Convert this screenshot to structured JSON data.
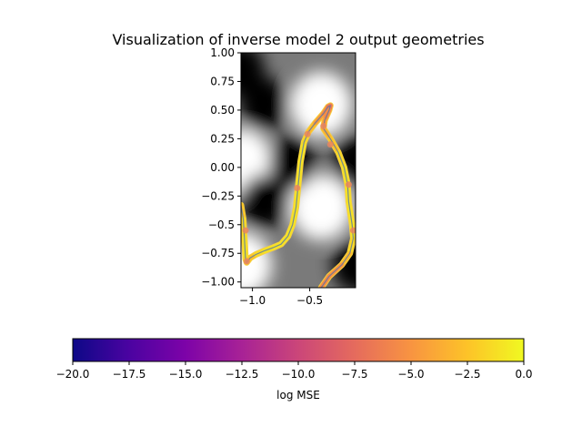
{
  "chart_data": {
    "type": "heatmap",
    "title": "Visualization of inverse model 2 output geometries",
    "xlabel": "",
    "ylabel": "",
    "xlim": [
      -1.1,
      -0.1
    ],
    "ylim": [
      -1.05,
      1.0
    ],
    "x_ticks": [
      {
        "value": -1.0,
        "label": "−1.0"
      },
      {
        "value": -0.5,
        "label": "−0.5"
      }
    ],
    "y_ticks": [
      {
        "value": 1.0,
        "label": "1.00"
      },
      {
        "value": 0.75,
        "label": "0.75"
      },
      {
        "value": 0.5,
        "label": "0.50"
      },
      {
        "value": 0.25,
        "label": "0.25"
      },
      {
        "value": 0.0,
        "label": "0.00"
      },
      {
        "value": -0.25,
        "label": "−0.25"
      },
      {
        "value": -0.5,
        "label": "−0.5"
      },
      {
        "value": -0.75,
        "label": "−0.75"
      },
      {
        "value": -1.0,
        "label": "−1.00"
      }
    ],
    "background": {
      "colormap": "gray",
      "bright_spots": [
        {
          "x": -0.4,
          "y": 0.55
        },
        {
          "x": -0.4,
          "y": -0.35
        },
        {
          "x": -1.1,
          "y": 0.05
        },
        {
          "x": -1.1,
          "y": -0.85
        }
      ],
      "dark_spots": [
        {
          "x": -0.9,
          "y": 0.55
        },
        {
          "x": -0.9,
          "y": -0.3
        },
        {
          "x": -0.1,
          "y": 0.05
        },
        {
          "x": -0.1,
          "y": -0.85
        },
        {
          "x": -1.1,
          "y": 0.85
        },
        {
          "x": -0.65,
          "y": 0.05
        }
      ]
    },
    "geometry_curve": {
      "color_metric": "log MSE",
      "points": [
        {
          "x": -1.1,
          "y": -0.33
        },
        {
          "x": -1.08,
          "y": -0.45
        },
        {
          "x": -1.07,
          "y": -0.62
        },
        {
          "x": -1.06,
          "y": -0.8
        },
        {
          "x": -1.05,
          "y": -0.83
        },
        {
          "x": -1.02,
          "y": -0.79
        },
        {
          "x": -0.97,
          "y": -0.76
        },
        {
          "x": -0.9,
          "y": -0.73
        },
        {
          "x": -0.82,
          "y": -0.7
        },
        {
          "x": -0.75,
          "y": -0.67
        },
        {
          "x": -0.69,
          "y": -0.6
        },
        {
          "x": -0.65,
          "y": -0.5
        },
        {
          "x": -0.62,
          "y": -0.35
        },
        {
          "x": -0.6,
          "y": -0.15
        },
        {
          "x": -0.58,
          "y": 0.05
        },
        {
          "x": -0.55,
          "y": 0.22
        },
        {
          "x": -0.51,
          "y": 0.31
        },
        {
          "x": -0.45,
          "y": 0.39
        },
        {
          "x": -0.38,
          "y": 0.47
        },
        {
          "x": -0.34,
          "y": 0.53
        },
        {
          "x": -0.32,
          "y": 0.54
        },
        {
          "x": -0.33,
          "y": 0.5
        },
        {
          "x": -0.37,
          "y": 0.41
        },
        {
          "x": -0.38,
          "y": 0.34
        },
        {
          "x": -0.32,
          "y": 0.25
        },
        {
          "x": -0.25,
          "y": 0.13
        },
        {
          "x": -0.2,
          "y": 0.0
        },
        {
          "x": -0.17,
          "y": -0.15
        },
        {
          "x": -0.16,
          "y": -0.3
        },
        {
          "x": -0.13,
          "y": -0.5
        },
        {
          "x": -0.12,
          "y": -0.62
        },
        {
          "x": -0.15,
          "y": -0.75
        },
        {
          "x": -0.22,
          "y": -0.85
        },
        {
          "x": -0.33,
          "y": -0.95
        },
        {
          "x": -0.4,
          "y": -1.05
        }
      ],
      "color_values": [
        -3,
        -2,
        -1,
        -1,
        -2,
        -3,
        -2,
        -1,
        -1,
        -1,
        -1,
        -1,
        -1,
        -1,
        -1,
        -1,
        -2,
        -4,
        -5,
        -6,
        -7,
        -6,
        -5,
        -4,
        -3,
        -2,
        -1,
        -1,
        -1,
        -1,
        -1,
        -2,
        -4,
        -6,
        -5
      ],
      "marker_points": [
        {
          "x": -1.06,
          "y": -0.55
        },
        {
          "x": -1.05,
          "y": -0.82
        },
        {
          "x": -0.61,
          "y": -0.18
        },
        {
          "x": -0.52,
          "y": 0.29
        },
        {
          "x": -0.38,
          "y": 0.36
        },
        {
          "x": -0.32,
          "y": 0.2
        },
        {
          "x": -0.16,
          "y": -0.15
        },
        {
          "x": -0.12,
          "y": -0.55
        }
      ]
    },
    "colorbar": {
      "label": "log MSE",
      "colormap": "plasma",
      "orientation": "horizontal",
      "range": [
        -20.0,
        0.0
      ],
      "ticks": [
        {
          "value": -20.0,
          "label": "−20.0"
        },
        {
          "value": -17.5,
          "label": "−17.5"
        },
        {
          "value": -15.0,
          "label": "−15.0"
        },
        {
          "value": -12.5,
          "label": "−12.5"
        },
        {
          "value": -10.0,
          "label": "−10.0"
        },
        {
          "value": -7.5,
          "label": "−7.5"
        },
        {
          "value": -5.0,
          "label": "−5.0"
        },
        {
          "value": -2.5,
          "label": "−2.5"
        },
        {
          "value": 0.0,
          "label": "0.0"
        }
      ]
    }
  }
}
